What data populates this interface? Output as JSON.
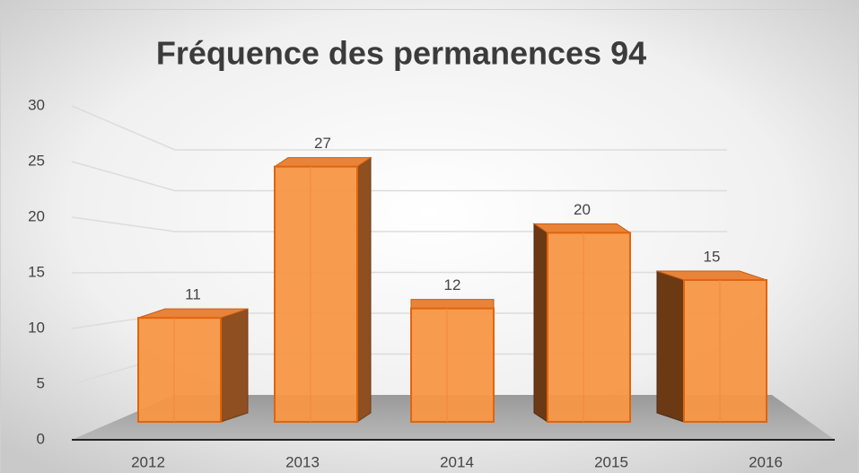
{
  "chart_data": {
    "type": "bar",
    "title": "Fréquence des permanences 94",
    "categories": [
      "2012",
      "2013",
      "2014",
      "2015",
      "2016"
    ],
    "values": [
      11,
      27,
      12,
      20,
      15
    ],
    "color": "#f79646",
    "ylim": [
      0,
      30
    ],
    "yticks": [
      0,
      5,
      10,
      15,
      20,
      25,
      30
    ],
    "grid": true
  }
}
